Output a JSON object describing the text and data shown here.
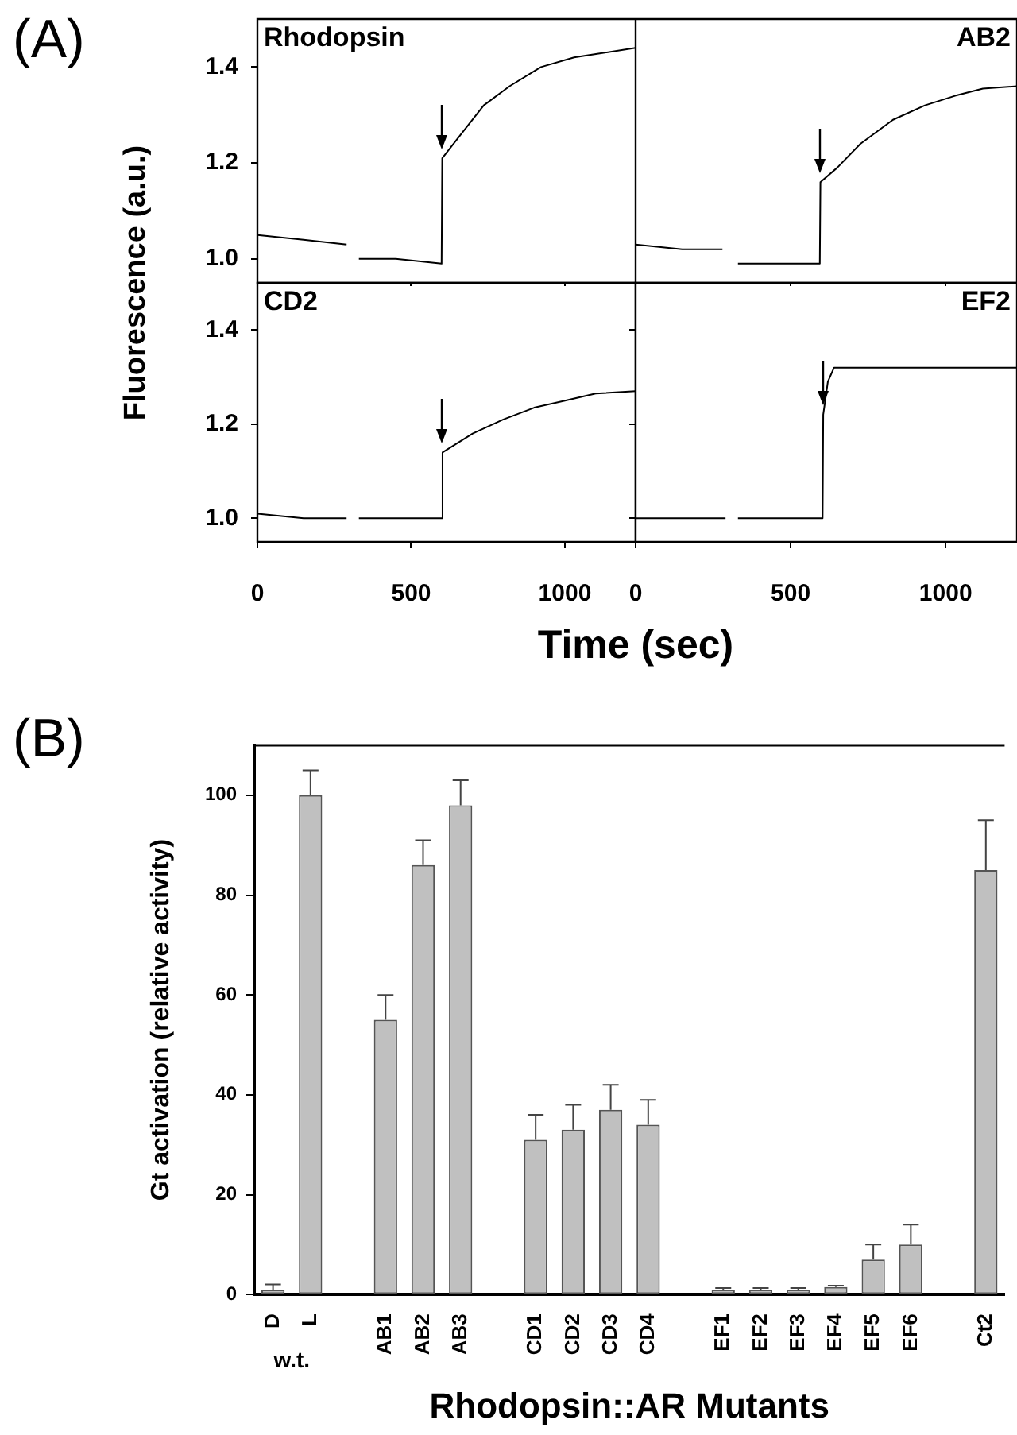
{
  "chart_data": [
    {
      "type": "line",
      "title": "Rhodopsin",
      "ylabel": "Fluorescence (a.u.)",
      "color": "#000000",
      "marker": "none",
      "tick_labels": "y",
      "x": [
        0,
        150,
        290,
        292,
        295,
        327,
        330,
        450,
        599,
        601,
        650,
        736,
        820,
        922,
        1030,
        1130,
        1230
      ],
      "values": [
        1.05,
        1.04,
        1.03,
        null,
        null,
        null,
        1.0,
        1.0,
        0.99,
        1.21,
        1.25,
        1.32,
        1.36,
        1.4,
        1.42,
        1.43,
        1.44
      ],
      "xlim": [
        0,
        1230
      ],
      "xticks": [
        {
          "value": 0,
          "label": null
        },
        {
          "value": 500,
          "label": null
        },
        {
          "value": 1000,
          "label": null
        }
      ],
      "ylim": [
        0.95,
        1.5
      ],
      "yticks": [
        {
          "value": 1,
          "label": "1.0"
        },
        1.2,
        1.4
      ],
      "annotations": [
        "(A)"
      ]
    },
    {
      "type": "line",
      "title": "AB2",
      "color": "#000000",
      "marker": "none",
      "tick_labels": false,
      "x": [
        0,
        150,
        280,
        283,
        285,
        326,
        330,
        450,
        594,
        596,
        650,
        725,
        830,
        933,
        1030,
        1120,
        1230
      ],
      "values": [
        1.03,
        1.02,
        1.02,
        null,
        null,
        null,
        0.99,
        0.99,
        0.99,
        1.16,
        1.19,
        1.24,
        1.29,
        1.32,
        1.34,
        1.355,
        1.36
      ],
      "xlim": [
        0,
        1230
      ],
      "xticks": [
        {
          "value": 0,
          "label": null
        },
        {
          "value": 500,
          "label": null
        },
        {
          "value": 1000,
          "label": null
        }
      ],
      "ylim": [
        0.95,
        1.5
      ],
      "yticks": [
        {
          "value": 1,
          "label": null
        },
        {
          "value": 1.2,
          "label": null
        },
        {
          "value": 1.4,
          "label": null
        }
      ]
    },
    {
      "type": "line",
      "title": "CD2",
      "xlabel": "Time (sec)",
      "color": "#000000",
      "marker": "none",
      "x": [
        0,
        150,
        290,
        292,
        295,
        327,
        330,
        450,
        600,
        602,
        700,
        800,
        900,
        1000,
        1100,
        1230
      ],
      "values": [
        1.01,
        1.0,
        1.0,
        null,
        null,
        null,
        1.0,
        1.0,
        1.0,
        1.14,
        1.18,
        1.21,
        1.235,
        1.25,
        1.265,
        1.27
      ],
      "xlim": [
        0,
        1230
      ],
      "xticks": [
        0,
        500,
        1000
      ],
      "ylim": [
        0.95,
        1.5
      ],
      "yticks": [
        {
          "value": 1,
          "label": "1.0"
        },
        1.2,
        1.4
      ]
    },
    {
      "type": "line",
      "title": "EF2",
      "color": "#000000",
      "marker": "none",
      "tick_labels": "x",
      "x": [
        0,
        150,
        290,
        292,
        295,
        327,
        330,
        450,
        603,
        605,
        620,
        640,
        700,
        900,
        1100,
        1230
      ],
      "values": [
        1.0,
        1.0,
        1.0,
        null,
        null,
        null,
        1.0,
        1.0,
        1.0,
        1.22,
        1.29,
        1.32,
        1.32,
        1.32,
        1.32,
        1.32
      ],
      "xlim": [
        0,
        1230
      ],
      "xticks": [
        0,
        500,
        1000
      ],
      "ylim": [
        0.95,
        1.5
      ],
      "yticks": [
        {
          "value": 1,
          "label": null
        },
        {
          "value": 1.2,
          "label": null
        },
        {
          "value": 1.4,
          "label": null
        }
      ]
    },
    {
      "type": "bar",
      "xlabel": "Rhodopsin::AR Mutants",
      "ylabel": "Gt activation (relative activity)",
      "color": "#c0c0c0",
      "categories": [
        "D",
        "L",
        null,
        "AB1",
        "AB2",
        "AB3",
        null,
        "CD1",
        "CD2",
        "CD3",
        "CD4",
        null,
        "EF1",
        "EF2",
        "EF3",
        "EF4",
        "EF5",
        "EF6",
        null,
        "Ct2"
      ],
      "values": [
        1,
        100,
        null,
        55,
        86,
        98,
        null,
        31,
        33,
        37,
        34,
        null,
        1,
        1,
        1,
        1.5,
        7,
        10,
        null,
        85
      ],
      "errors": [
        [
          1,
          2
        ],
        [
          100,
          105
        ],
        null,
        [
          55,
          60
        ],
        [
          86,
          91
        ],
        [
          98,
          103
        ],
        null,
        [
          31,
          36
        ],
        [
          33,
          38
        ],
        [
          37,
          42
        ],
        [
          34,
          39
        ],
        null,
        [
          1,
          1.3
        ],
        [
          1,
          1.3
        ],
        [
          1,
          1.3
        ],
        [
          1.5,
          1.8
        ],
        [
          7,
          10
        ],
        [
          10,
          14
        ],
        null,
        [
          85,
          95
        ]
      ],
      "ylim": [
        0,
        110
      ],
      "yticks": [
        0,
        20,
        40,
        60,
        80,
        100
      ],
      "annotations": [
        "(B)",
        "w.t."
      ]
    }
  ]
}
